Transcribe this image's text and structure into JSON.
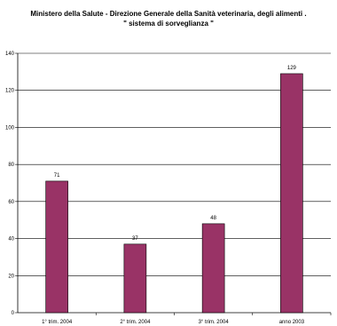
{
  "chart_data": {
    "type": "bar",
    "title": "Ministero della Salute - Direzione Generale della Sanità veterinaria, degli alimenti .",
    "subtitle": "\" sistema di sorveglianza \"",
    "categories": [
      "1° trim. 2004",
      "2° trim. 2004",
      "3° trim. 2004",
      "anno 2003"
    ],
    "values": [
      71,
      37,
      48,
      129
    ],
    "ylim": [
      0,
      140
    ],
    "yticks": [
      0,
      20,
      40,
      60,
      80,
      100,
      120,
      140
    ],
    "grid": true,
    "legend": "none",
    "colors": {
      "bar": "#993366",
      "grid": "#000000"
    }
  }
}
